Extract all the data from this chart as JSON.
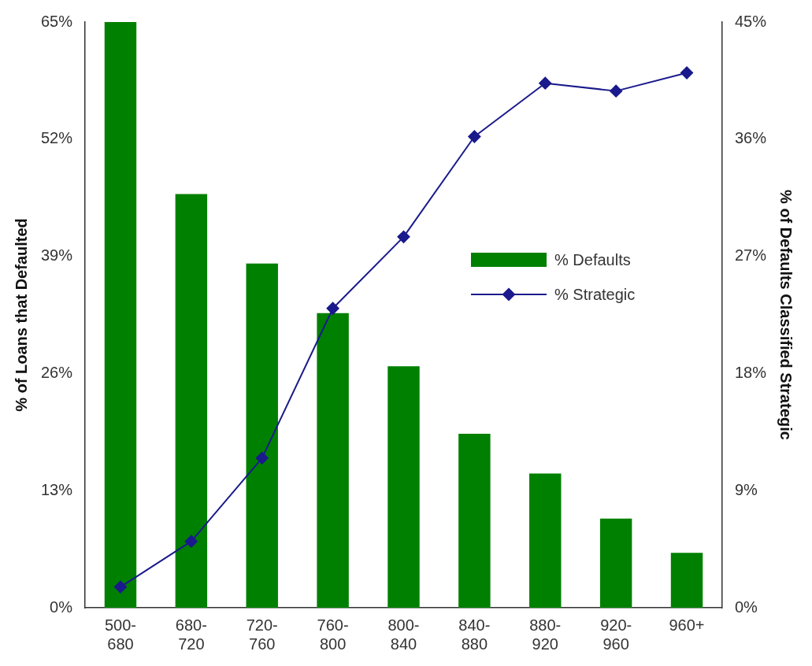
{
  "chart_data": {
    "type": "bar",
    "categories": [
      "500-\n680",
      "680-\n720",
      "720-\n760",
      "760-\n800",
      "800-\n840",
      "840-\n880",
      "880-\n920",
      "920-\n960",
      "960+"
    ],
    "series": [
      {
        "name": "% Defaults",
        "color": "#008000",
        "values": [
          65,
          45.9,
          38.2,
          32.7,
          26.8,
          19.3,
          14.9,
          9.9,
          6.1
        ]
      },
      {
        "name": "% Strategic",
        "type": "line",
        "axis": "y2",
        "color": "#1a1a8c",
        "values": [
          1.6,
          5.1,
          11.5,
          23.0,
          28.5,
          36.2,
          40.3,
          39.7,
          41.1
        ]
      }
    ],
    "ylabel": "% of Loans that Defaulted",
    "y2label": "% of Defaults Classified Strategic",
    "ylim": [
      0,
      65
    ],
    "yticks": [
      {
        "value": 0,
        "label": "0%"
      },
      {
        "value": 13,
        "label": "13%"
      },
      {
        "value": 26,
        "label": "26%"
      },
      {
        "value": 39,
        "label": "39%"
      },
      {
        "value": 52,
        "label": "52%"
      },
      {
        "value": 65,
        "label": "65%"
      }
    ],
    "y2lim": [
      0,
      45
    ],
    "y2ticks": [
      {
        "value": 0,
        "label": "0%"
      },
      {
        "value": 9,
        "label": "9%"
      },
      {
        "value": 18,
        "label": "18%"
      },
      {
        "value": 27,
        "label": "27%"
      },
      {
        "value": 36,
        "label": "36%"
      },
      {
        "value": 45,
        "label": "45%"
      }
    ],
    "grid": false,
    "legend": "center right",
    "marker": "diamond"
  }
}
